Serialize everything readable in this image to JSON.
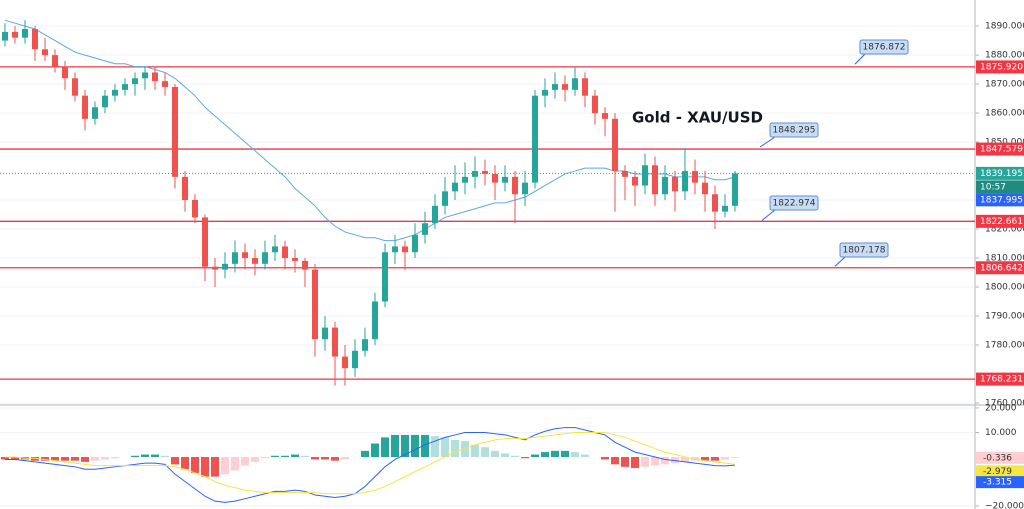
{
  "chart_data": {
    "type": "candlestick",
    "title": "Gold - XAU/USD",
    "up_color": "#26a69a",
    "down_color": "#ef5350",
    "ylim": [
      1759.3,
      1899
    ],
    "yticks": [
      {
        "value": 1890,
        "label": "1890.000"
      },
      {
        "value": 1880,
        "label": "1880.000"
      },
      {
        "value": 1870,
        "label": "1870.000"
      },
      {
        "value": 1860,
        "label": "1860.000"
      },
      {
        "value": 1850,
        "label": "1850.000"
      },
      {
        "value": 1830,
        "label": "1830.000"
      },
      {
        "value": 1820,
        "label": "1820.000"
      },
      {
        "value": 1810,
        "label": "1810.000"
      },
      {
        "value": 1800,
        "label": "1800.000"
      },
      {
        "value": 1790,
        "label": "1790.000"
      },
      {
        "value": 1780,
        "label": "1780.000"
      },
      {
        "value": 1760,
        "label": "1760.000"
      }
    ],
    "grid": true,
    "candles": [
      [
        1885,
        1891,
        1883,
        1888
      ],
      [
        1888,
        1890,
        1884,
        1886
      ],
      [
        1886,
        1892,
        1884,
        1889
      ],
      [
        1889,
        1890,
        1878,
        1882
      ],
      [
        1882,
        1886,
        1878,
        1880
      ],
      [
        1880,
        1882,
        1874,
        1876
      ],
      [
        1876,
        1878,
        1868,
        1872
      ],
      [
        1872,
        1874,
        1864,
        1866
      ],
      [
        1866,
        1868,
        1854,
        1858
      ],
      [
        1858,
        1864,
        1856,
        1862
      ],
      [
        1862,
        1868,
        1860,
        1866
      ],
      [
        1866,
        1870,
        1864,
        1868
      ],
      [
        1868,
        1872,
        1866,
        1870
      ],
      [
        1870,
        1874,
        1866,
        1872
      ],
      [
        1872,
        1876,
        1868,
        1874
      ],
      [
        1874,
        1876,
        1868,
        1871
      ],
      [
        1871,
        1874,
        1866,
        1869
      ],
      [
        1869,
        1870,
        1834,
        1838
      ],
      [
        1838,
        1840,
        1826,
        1830
      ],
      [
        1830,
        1832,
        1822,
        1824
      ],
      [
        1824,
        1825,
        1802,
        1807
      ],
      [
        1807,
        1810,
        1800,
        1806
      ],
      [
        1806,
        1812,
        1803,
        1808
      ],
      [
        1808,
        1816,
        1805,
        1812
      ],
      [
        1812,
        1815,
        1806,
        1810
      ],
      [
        1810,
        1813,
        1804,
        1808
      ],
      [
        1808,
        1816,
        1806,
        1812
      ],
      [
        1812,
        1818,
        1809,
        1814
      ],
      [
        1814,
        1816,
        1806,
        1810
      ],
      [
        1810,
        1813,
        1805,
        1809
      ],
      [
        1809,
        1810,
        1800,
        1806
      ],
      [
        1806,
        1808,
        1776,
        1782
      ],
      [
        1782,
        1790,
        1778,
        1786
      ],
      [
        1786,
        1788,
        1766,
        1776
      ],
      [
        1776,
        1780,
        1766,
        1772
      ],
      [
        1772,
        1782,
        1769,
        1778
      ],
      [
        1778,
        1786,
        1776,
        1782
      ],
      [
        1782,
        1798,
        1780,
        1795
      ],
      [
        1795,
        1815,
        1793,
        1812
      ],
      [
        1812,
        1818,
        1808,
        1814
      ],
      [
        1814,
        1816,
        1806,
        1812
      ],
      [
        1812,
        1822,
        1810,
        1818
      ],
      [
        1818,
        1826,
        1815,
        1822
      ],
      [
        1822,
        1832,
        1820,
        1828
      ],
      [
        1828,
        1838,
        1825,
        1833
      ],
      [
        1833,
        1842,
        1830,
        1836
      ],
      [
        1836,
        1843,
        1832,
        1838
      ],
      [
        1838,
        1845,
        1834,
        1840
      ],
      [
        1840,
        1844,
        1835,
        1839
      ],
      [
        1839,
        1842,
        1830,
        1836
      ],
      [
        1836,
        1842,
        1833,
        1838
      ],
      [
        1838,
        1840,
        1822,
        1832
      ],
      [
        1832,
        1840,
        1828,
        1836
      ],
      [
        1836,
        1868,
        1834,
        1866
      ],
      [
        1866,
        1872,
        1862,
        1868
      ],
      [
        1868,
        1874,
        1865,
        1870
      ],
      [
        1870,
        1873,
        1864,
        1868
      ],
      [
        1868,
        1876,
        1866,
        1872
      ],
      [
        1872,
        1874,
        1862,
        1866
      ],
      [
        1866,
        1868,
        1856,
        1860
      ],
      [
        1860,
        1862,
        1852,
        1858
      ],
      [
        1858,
        1860,
        1826,
        1840
      ],
      [
        1840,
        1842,
        1830,
        1838
      ],
      [
        1838,
        1840,
        1828,
        1835
      ],
      [
        1835,
        1846,
        1832,
        1842
      ],
      [
        1842,
        1845,
        1828,
        1832
      ],
      [
        1832,
        1842,
        1830,
        1838
      ],
      [
        1838,
        1840,
        1826,
        1833
      ],
      [
        1833,
        1848,
        1830,
        1840
      ],
      [
        1840,
        1844,
        1832,
        1836
      ],
      [
        1836,
        1840,
        1826,
        1832
      ],
      [
        1832,
        1835,
        1820,
        1826
      ],
      [
        1826,
        1832,
        1824,
        1828
      ],
      [
        1828,
        1840,
        1826,
        1839.195
      ]
    ],
    "ma": {
      "color": "#5aa9e6",
      "values": [
        1892,
        1891,
        1890,
        1889,
        1887,
        1885,
        1883,
        1881,
        1880,
        1879,
        1878,
        1877,
        1877,
        1876,
        1876,
        1875,
        1874,
        1872,
        1869,
        1866,
        1862,
        1859,
        1856,
        1853,
        1850,
        1847,
        1844,
        1841,
        1838,
        1834,
        1831,
        1828,
        1824,
        1821,
        1819,
        1818,
        1817,
        1817,
        1816,
        1816,
        1817,
        1818,
        1820,
        1822,
        1824,
        1825,
        1826,
        1827,
        1828,
        1829,
        1829,
        1830,
        1831,
        1833,
        1835,
        1837,
        1839,
        1840,
        1841,
        1841,
        1841,
        1840,
        1840,
        1839,
        1839,
        1839,
        1839,
        1838,
        1838,
        1838,
        1838,
        1837,
        1837,
        1837.995
      ]
    },
    "levels": {
      "color": "#f23645",
      "items": [
        {
          "value": 1875.92,
          "label": "1875.920"
        },
        {
          "value": 1847.579,
          "label": "1847.579"
        },
        {
          "value": 1822.661,
          "label": "1822.661"
        },
        {
          "value": 1806.642,
          "label": "1806.642"
        },
        {
          "value": 1768.231,
          "label": "1768.231"
        }
      ]
    },
    "callouts": [
      1876.872,
      1848.295,
      1822.974,
      1807.178
    ],
    "last_time": "10:57",
    "macd": {
      "ylim": [
        -21.2,
        21.2
      ],
      "yticks": [
        {
          "value": 20,
          "label": "20.000"
        },
        {
          "value": 10,
          "label": "10.000"
        },
        {
          "value": -20,
          "label": "−20.000"
        }
      ],
      "hist": {
        "colors": [
          "#26a69a",
          "#b2dfdb",
          "#ffcdd2",
          "#ef5350"
        ],
        "values": [
          -1,
          -1,
          -1,
          -1.5,
          -1.5,
          -1.5,
          -1.5,
          -1.5,
          -2,
          -1.5,
          -1,
          -0.5,
          0,
          0.5,
          1,
          1,
          0.5,
          -3,
          -5,
          -6.5,
          -8,
          -8,
          -7,
          -5.5,
          -3.5,
          -2,
          -0.5,
          0.5,
          0.5,
          1,
          0.5,
          -1,
          -1,
          -1.5,
          -1,
          0,
          2.5,
          5.5,
          8,
          9,
          9,
          9,
          9,
          8.5,
          8,
          7,
          6.5,
          5,
          4,
          2.5,
          1.5,
          0.5,
          -0.5,
          1,
          2,
          2.5,
          2.5,
          2,
          1,
          0,
          -1,
          -3,
          -4,
          -4.5,
          -4,
          -3.5,
          -3,
          -2.5,
          -2,
          -1.5,
          -1.5,
          -1.5,
          -1.1,
          -0.336
        ]
      },
      "macd": {
        "color": "#2962ff",
        "values": [
          -1,
          -1,
          -1.5,
          -2,
          -2.5,
          -3,
          -3.5,
          -4,
          -5,
          -5,
          -4.5,
          -4,
          -3.5,
          -3,
          -2.5,
          -2.5,
          -3,
          -7,
          -10,
          -13,
          -16,
          -18,
          -18.5,
          -18,
          -17,
          -16,
          -15,
          -14,
          -14,
          -13.5,
          -14,
          -15.5,
          -16,
          -16.5,
          -16,
          -15,
          -12,
          -8,
          -4,
          -1,
          1,
          3,
          5,
          6.5,
          8,
          9,
          10,
          10,
          10,
          9.5,
          9,
          8,
          7,
          9,
          10.5,
          11.5,
          12,
          12,
          11,
          10,
          9,
          6,
          4,
          2,
          1,
          0,
          -1,
          -1.5,
          -2,
          -2.5,
          -3,
          -3.5,
          -3.6,
          -3.315
        ]
      },
      "signal": {
        "color": "#f5e642",
        "values": [
          0,
          0,
          -0.5,
          -0.5,
          -1,
          -1.5,
          -2,
          -2.5,
          -3,
          -3.5,
          -3.5,
          -3.5,
          -3.5,
          -3.5,
          -3.5,
          -3.5,
          -3.5,
          -4,
          -5,
          -6.5,
          -8,
          -10,
          -11.5,
          -12.5,
          -13.5,
          -14,
          -14.5,
          -14.5,
          -14.5,
          -14.5,
          -14.5,
          -14.5,
          -15,
          -15,
          -15,
          -15,
          -14.5,
          -13.5,
          -12,
          -10,
          -8,
          -6,
          -4,
          -2,
          0,
          2,
          3.5,
          5,
          6,
          7,
          7.5,
          7.5,
          7.5,
          8,
          8.5,
          9,
          9.5,
          10,
          10,
          10,
          10,
          9,
          8,
          6.5,
          5,
          3.5,
          2,
          1,
          0,
          -1,
          -1.5,
          -2,
          -2.5,
          -2.979
        ]
      }
    }
  }
}
